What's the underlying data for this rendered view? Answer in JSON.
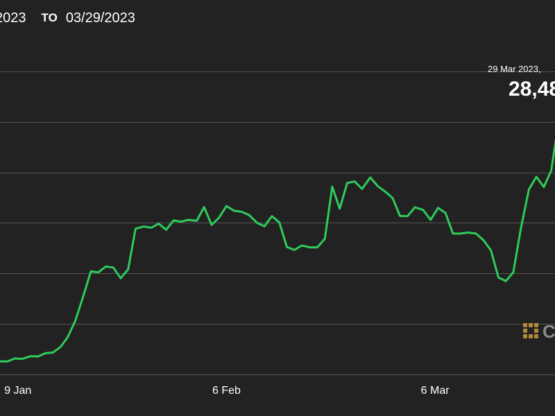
{
  "date_range": {
    "from": "2023",
    "to_word": "TO",
    "to": "03/29/2023"
  },
  "tooltip": {
    "date": "29 Mar 2023,",
    "value": "28,48"
  },
  "watermark": {
    "text": "C"
  },
  "colors": {
    "background": "#222222",
    "line": "#2ecc5a",
    "grid": "#555555",
    "text": "#ffffff",
    "watermark": "#b08a3a"
  },
  "chart_data": {
    "type": "line",
    "title": "",
    "xlabel": "",
    "ylabel": "",
    "x_ticks": [
      {
        "label": "9 Jan",
        "day": 9
      },
      {
        "label": "6 Feb",
        "day": 37
      },
      {
        "label": "6 Mar",
        "day": 65
      }
    ],
    "x_range": [
      6.6,
      81.1
    ],
    "y_gridlines": [
      15000,
      17500,
      20000,
      22500,
      25000,
      27500,
      30000
    ],
    "y_range": [
      15000,
      32500
    ],
    "grid": true,
    "series": [
      {
        "values": [
          [
            6.6,
            15640
          ],
          [
            7.6,
            15640
          ],
          [
            8.6,
            15790
          ],
          [
            9.6,
            15770
          ],
          [
            10.7,
            15900
          ],
          [
            11.7,
            15890
          ],
          [
            12.7,
            16050
          ],
          [
            13.7,
            16080
          ],
          [
            14.7,
            16350
          ],
          [
            15.7,
            16850
          ],
          [
            16.7,
            17650
          ],
          [
            17.8,
            18900
          ],
          [
            18.8,
            20100
          ],
          [
            19.8,
            20050
          ],
          [
            20.8,
            20340
          ],
          [
            21.8,
            20290
          ],
          [
            22.8,
            19760
          ],
          [
            23.8,
            20200
          ],
          [
            24.8,
            22210
          ],
          [
            25.9,
            22320
          ],
          [
            26.9,
            22260
          ],
          [
            27.9,
            22460
          ],
          [
            28.9,
            22160
          ],
          [
            29.9,
            22620
          ],
          [
            30.9,
            22560
          ],
          [
            31.9,
            22650
          ],
          [
            33.0,
            22600
          ],
          [
            34.0,
            23280
          ],
          [
            35.0,
            22400
          ],
          [
            36.0,
            22760
          ],
          [
            37.0,
            23330
          ],
          [
            38.0,
            23100
          ],
          [
            39.0,
            23050
          ],
          [
            40.0,
            22900
          ],
          [
            41.1,
            22500
          ],
          [
            42.1,
            22330
          ],
          [
            43.1,
            22830
          ],
          [
            44.1,
            22520
          ],
          [
            45.1,
            21310
          ],
          [
            46.1,
            21160
          ],
          [
            47.1,
            21380
          ],
          [
            48.2,
            21290
          ],
          [
            49.2,
            21290
          ],
          [
            50.2,
            21710
          ],
          [
            51.2,
            24290
          ],
          [
            52.2,
            23200
          ],
          [
            53.2,
            24470
          ],
          [
            54.2,
            24550
          ],
          [
            55.2,
            24180
          ],
          [
            56.3,
            24750
          ],
          [
            57.3,
            24320
          ],
          [
            58.3,
            24050
          ],
          [
            59.3,
            23730
          ],
          [
            60.3,
            22840
          ],
          [
            61.3,
            22830
          ],
          [
            62.3,
            23270
          ],
          [
            63.4,
            23140
          ],
          [
            64.4,
            22650
          ],
          [
            65.4,
            23240
          ],
          [
            66.4,
            22990
          ],
          [
            67.4,
            21970
          ],
          [
            68.4,
            21970
          ],
          [
            69.4,
            22020
          ],
          [
            70.5,
            21970
          ],
          [
            71.5,
            21640
          ],
          [
            72.5,
            21140
          ],
          [
            73.5,
            19800
          ],
          [
            74.5,
            19620
          ],
          [
            75.5,
            20050
          ],
          [
            76.5,
            22190
          ],
          [
            77.6,
            24160
          ],
          [
            78.6,
            24780
          ],
          [
            79.6,
            24270
          ],
          [
            80.6,
            25090
          ],
          [
            81.6,
            27560
          ],
          [
            82.6,
            27100
          ]
        ]
      }
    ]
  }
}
